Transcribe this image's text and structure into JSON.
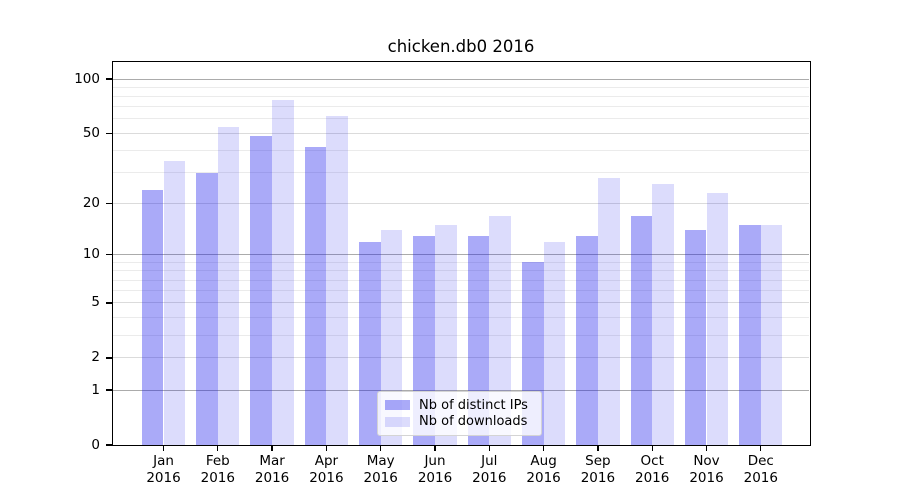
{
  "title": {
    "text": "chicken.db0 2016"
  },
  "chart_data": {
    "type": "bar",
    "title": "chicken.db0 2016",
    "year_label": "2016",
    "categories": [
      "Jan",
      "Feb",
      "Mar",
      "Apr",
      "May",
      "Jun",
      "Jul",
      "Aug",
      "Sep",
      "Oct",
      "Nov",
      "Dec"
    ],
    "series": [
      {
        "name": "Nb of distinct IPs",
        "color": "#1414EB",
        "alpha": 0.36,
        "values": [
          24,
          30,
          48,
          42,
          12,
          13,
          13,
          9,
          13,
          17,
          14,
          15
        ]
      },
      {
        "name": "Nb of downloads",
        "color": "#1414EB",
        "alpha": 0.15,
        "values": [
          35,
          54,
          77,
          62,
          14,
          15,
          17,
          12,
          28,
          26,
          23,
          15
        ]
      }
    ],
    "y_axis": {
      "scale": "log1p (pixel position proportional to log10(1+value))",
      "tick_labels": [
        100,
        50,
        20,
        10,
        5,
        2,
        1,
        0
      ],
      "major_gridlines": [
        1,
        10,
        100
      ],
      "labeled_gridlines": [
        2,
        5,
        20,
        50
      ],
      "minor_gridlines": [
        3,
        4,
        6,
        7,
        8,
        9,
        30,
        40,
        60,
        70,
        80,
        90
      ],
      "ylim": [
        0,
        126
      ]
    },
    "xlabel": "",
    "ylabel": "",
    "grid": true,
    "legend_position": "lower center"
  },
  "colors": {
    "bar_distinct_ips_rendered": "#AAAAF8",
    "bar_downloads_rendered": "#DCDCFC",
    "gridline_major": "#ABABAB",
    "gridline_labeled": "#DBDBDB",
    "gridline_minor": "#EBEBEB",
    "axis": "#000000",
    "text": "#000000",
    "legend_border": "#D4D4D4"
  }
}
